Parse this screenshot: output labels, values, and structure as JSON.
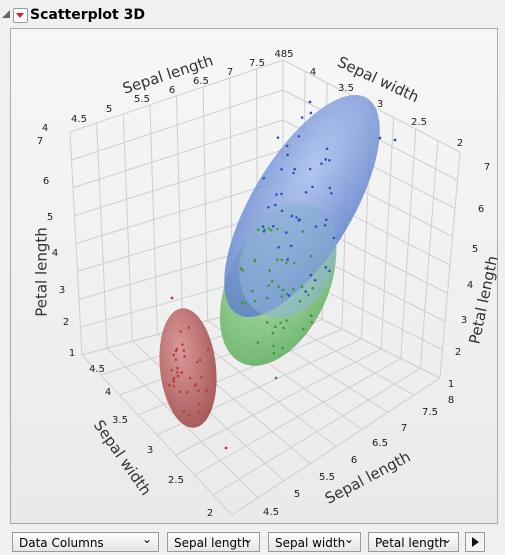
{
  "header": {
    "title": "Scatterplot 3D"
  },
  "plot": {
    "top_left_axis": {
      "label": "Sepal length",
      "ticks": [
        "4",
        "4.5",
        "5",
        "5.5",
        "6",
        "6.5",
        "7",
        "7.5"
      ]
    },
    "top_cluster": "485",
    "top_right_axis": {
      "label": "Sepal width",
      "ticks": [
        "4",
        "3.5",
        "3",
        "2.5",
        "2"
      ]
    },
    "left_axis": {
      "label": "Petal length",
      "ticks": [
        "7",
        "6",
        "5",
        "4",
        "3",
        "2",
        "1"
      ]
    },
    "right_axis": {
      "label": "Petal length",
      "ticks": [
        "7",
        "6",
        "5",
        "4",
        "3",
        "2",
        "1"
      ]
    },
    "bottom_left_axis": {
      "label": "Sepal width",
      "ticks": [
        "4.5",
        "4",
        "3.5",
        "3",
        "2.5",
        "2"
      ]
    },
    "bottom_right_axis": {
      "label": "Sepal length",
      "ticks": [
        "8",
        "7.5",
        "7",
        "6.5",
        "6",
        "5.5",
        "5",
        "4.5"
      ]
    }
  },
  "controls": {
    "dropdowns": [
      "Data Columns",
      "Sepal length",
      "Sepal width",
      "Petal length"
    ]
  }
}
